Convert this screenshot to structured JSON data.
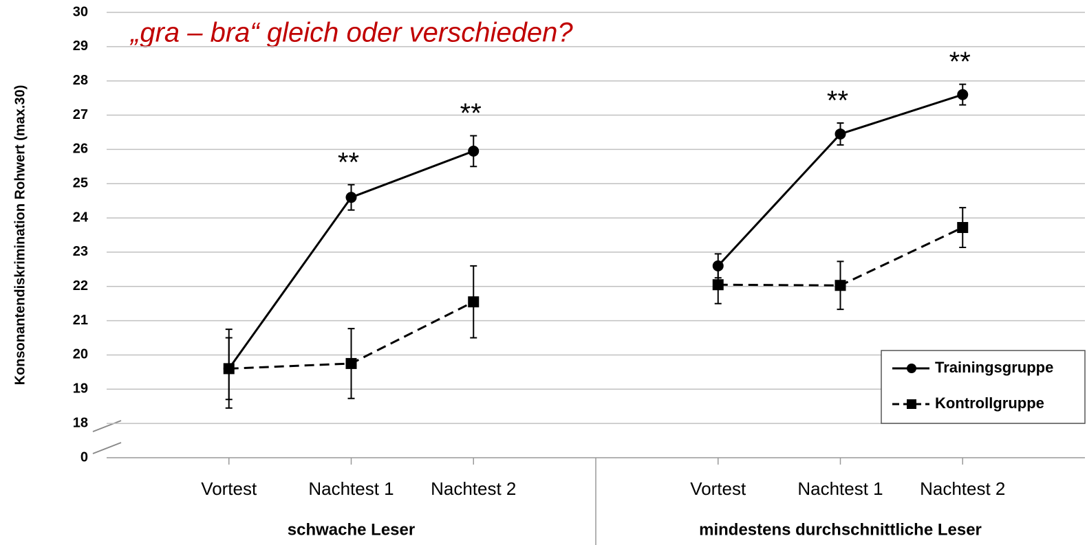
{
  "chart_data": {
    "type": "line",
    "title": "„gra – bra“    gleich oder verschieden?",
    "ylabel": "Konsonantendiskrimination Rohwert (max.30)",
    "groups": [
      {
        "name": "schwache Leser",
        "categories": [
          "Vortest",
          "Nachtest 1",
          "Nachtest 2"
        ]
      },
      {
        "name": "mindestens durchschnittliche  Leser",
        "categories": [
          "Vortest",
          "Nachtest 1",
          "Nachtest 2"
        ]
      }
    ],
    "series": [
      {
        "name": "Trainingsgruppe",
        "color": "#000000",
        "dashed": false,
        "marker": "circle",
        "values": [
          19.6,
          24.6,
          25.95,
          22.6,
          26.45,
          27.6
        ],
        "errors": [
          0.9,
          0.37,
          0.45,
          0.35,
          0.32,
          0.3
        ],
        "significance": [
          null,
          "**",
          "**",
          null,
          "**",
          "**"
        ]
      },
      {
        "name": "Kontrollgruppe",
        "color": "#000000",
        "dashed": true,
        "marker": "square",
        "values": [
          19.6,
          19.75,
          21.55,
          22.05,
          22.03,
          23.72
        ],
        "errors": [
          1.15,
          1.02,
          1.05,
          0.55,
          0.7,
          0.58
        ]
      }
    ],
    "ylim": [
      0,
      30
    ],
    "yticks": [
      0,
      18,
      19,
      20,
      21,
      22,
      23,
      24,
      25,
      26,
      27,
      28,
      29,
      30
    ],
    "axis_break": true,
    "grid": true,
    "legend": "lower right"
  }
}
